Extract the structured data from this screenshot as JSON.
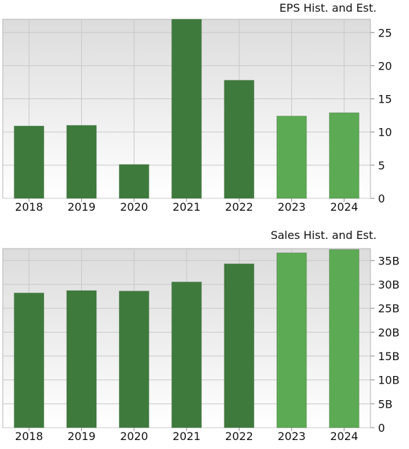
{
  "chart_data": [
    {
      "type": "bar",
      "title": "EPS Hist. and Est.",
      "categories": [
        "2018",
        "2019",
        "2020",
        "2021",
        "2022",
        "2023",
        "2024"
      ],
      "values": [
        10.9,
        11.0,
        5.1,
        27.0,
        17.8,
        12.4,
        12.9
      ],
      "estimate": [
        false,
        false,
        false,
        false,
        false,
        true,
        true
      ],
      "ylim": [
        0,
        27
      ],
      "yticks": [
        0,
        5,
        10,
        15,
        20,
        25
      ],
      "ytick_labels": [
        "0",
        "5",
        "10",
        "15",
        "20",
        "25"
      ],
      "grid": true
    },
    {
      "type": "bar",
      "title": "Sales Hist. and Est.",
      "categories": [
        "2018",
        "2019",
        "2020",
        "2021",
        "2022",
        "2023",
        "2024"
      ],
      "values": [
        28.2,
        28.7,
        28.6,
        30.5,
        34.3,
        36.6,
        37.3
      ],
      "estimate": [
        false,
        false,
        false,
        false,
        false,
        true,
        true
      ],
      "ylim": [
        0,
        37.5
      ],
      "yticks": [
        0,
        5,
        10,
        15,
        20,
        25,
        30,
        35
      ],
      "ytick_labels": [
        "0",
        "5B",
        "10B",
        "15B",
        "20B",
        "25B",
        "30B",
        "35B"
      ],
      "grid": true
    }
  ],
  "colors": {
    "historical": "#3f7a3d",
    "estimate": "#5daa54",
    "grid": "#c8c8c8",
    "plot_top": "#dcdcdc",
    "plot_bottom": "#ffffff"
  }
}
